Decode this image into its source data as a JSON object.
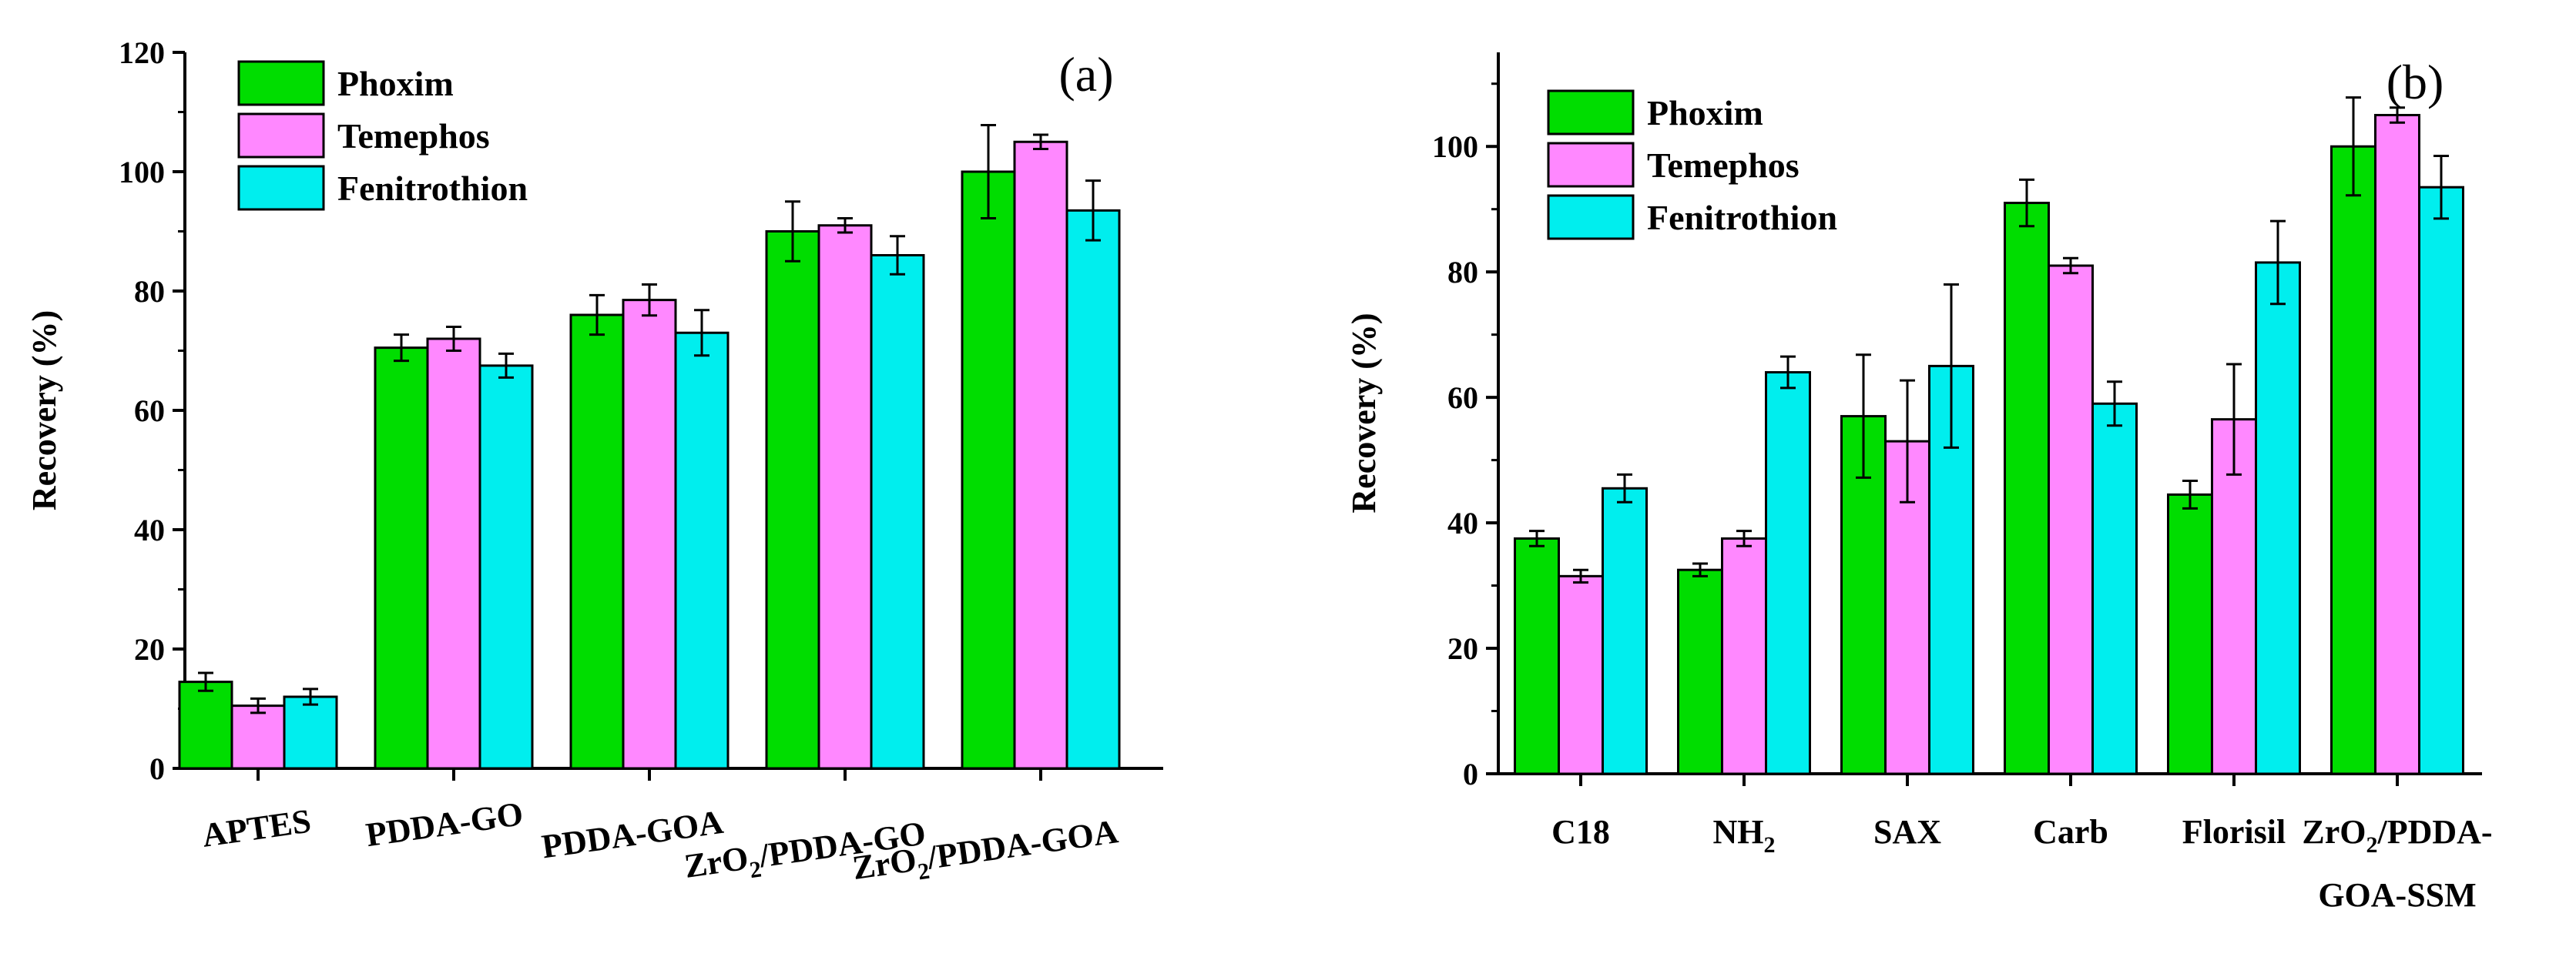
{
  "chart_data": [
    {
      "type": "bar",
      "panel_label": "(a)",
      "ylabel": "Recovery (%)",
      "xlabel": "",
      "ylim": [
        0,
        120
      ],
      "yticks": [
        0,
        20,
        40,
        60,
        80,
        100,
        120
      ],
      "grid": false,
      "legend_position": "top-left",
      "categories": [
        {
          "main": "APTES"
        },
        {
          "main": "PDDA-GO"
        },
        {
          "main": "PDDA-GOA"
        },
        {
          "main": "ZrO",
          "sub": "2",
          "tail": "/PDDA-GO"
        },
        {
          "main": "ZrO",
          "sub": "2",
          "tail": "/PDDA-GOA"
        }
      ],
      "series": [
        {
          "name": "Phoxim",
          "color": "#00dd00",
          "values": [
            14.5,
            70.5,
            76,
            90,
            100
          ],
          "errors": [
            1.5,
            2.2,
            3.3,
            5,
            7.8
          ]
        },
        {
          "name": "Temephos",
          "color": "#ff88ff",
          "values": [
            10.5,
            72,
            78.5,
            91,
            105
          ],
          "errors": [
            1.2,
            2,
            2.6,
            1.2,
            1.2
          ]
        },
        {
          "name": "Fenitrothion",
          "color": "#00eeee",
          "values": [
            12,
            67.5,
            73,
            86,
            93.5
          ],
          "errors": [
            1.3,
            2,
            3.8,
            3.2,
            5
          ]
        }
      ]
    },
    {
      "type": "bar",
      "panel_label": "(b)",
      "ylabel": "Recovery (%)",
      "xlabel": "",
      "ylim": [
        0,
        115
      ],
      "yticks": [
        0,
        20,
        40,
        60,
        80,
        100
      ],
      "grid": false,
      "legend_position": "top-left",
      "categories": [
        {
          "main": "C18"
        },
        {
          "main": "NH",
          "sub": "2"
        },
        {
          "main": "SAX"
        },
        {
          "main": "Carb"
        },
        {
          "main": "Florisil"
        },
        {
          "main": "ZrO",
          "sub": "2",
          "tail": "/PDDA-",
          "line2": "GOA-SSM"
        }
      ],
      "series": [
        {
          "name": "Phoxim",
          "color": "#00dd00",
          "values": [
            37.5,
            32.5,
            57,
            91,
            44.5,
            100
          ],
          "errors": [
            1.2,
            1,
            9.8,
            3.7,
            2.2,
            7.8
          ]
        },
        {
          "name": "Temephos",
          "color": "#ff88ff",
          "values": [
            31.5,
            37.5,
            53,
            81,
            56.5,
            105
          ],
          "errors": [
            1,
            1.2,
            9.7,
            1.2,
            8.8,
            1.2
          ]
        },
        {
          "name": "Fenitrothion",
          "color": "#00eeee",
          "values": [
            45.5,
            64,
            65,
            59,
            81.5,
            93.5
          ],
          "errors": [
            2.2,
            2.5,
            13,
            3.5,
            6.6,
            5
          ]
        }
      ]
    }
  ]
}
